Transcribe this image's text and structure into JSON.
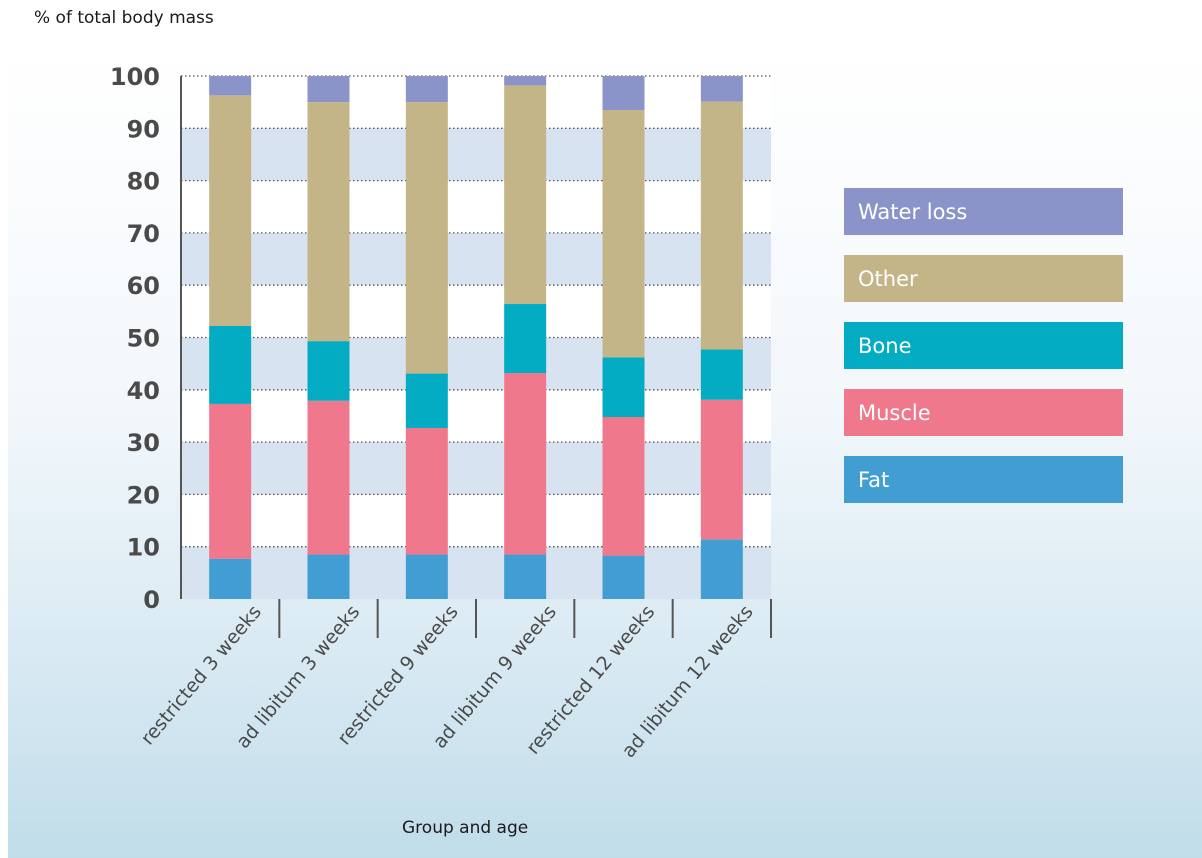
{
  "chart_data": {
    "type": "bar",
    "stacked": true,
    "ylabel": "% of total body mass",
    "xlabel": "Group and age",
    "categories": [
      "restricted 3 weeks",
      "ad libitum 3 weeks",
      "restricted 9 weeks",
      "ad libitum 9 weeks",
      "restricted 12 weeks",
      "ad libitum 12 weeks"
    ],
    "ylim": [
      0,
      100
    ],
    "yticks": [
      "0",
      "10",
      "20",
      "30",
      "40",
      "50",
      "60",
      "70",
      "80",
      "90",
      "100"
    ],
    "series": [
      {
        "name": "Fat",
        "color": "#429dd3",
        "values": [
          7.7,
          8.5,
          8.5,
          8.5,
          8.3,
          11.4
        ]
      },
      {
        "name": "Muscle",
        "color": "#f0788d",
        "values": [
          29.6,
          29.4,
          24.2,
          34.7,
          26.5,
          26.7
        ]
      },
      {
        "name": "Bone",
        "color": "#03acc2",
        "values": [
          14.9,
          11.4,
          10.4,
          13.2,
          11.4,
          9.6
        ]
      },
      {
        "name": "Other",
        "color": "#c4b589",
        "values": [
          44.1,
          45.7,
          51.9,
          41.8,
          47.3,
          47.4
        ]
      },
      {
        "name": "Water loss",
        "color": "#8a94c8",
        "values": [
          3.7,
          5.0,
          5.0,
          1.8,
          6.5,
          4.9
        ]
      }
    ],
    "legend_order": [
      "Water loss",
      "Other",
      "Bone",
      "Muscle",
      "Fat"
    ],
    "legend_position": "right",
    "grid": true
  }
}
